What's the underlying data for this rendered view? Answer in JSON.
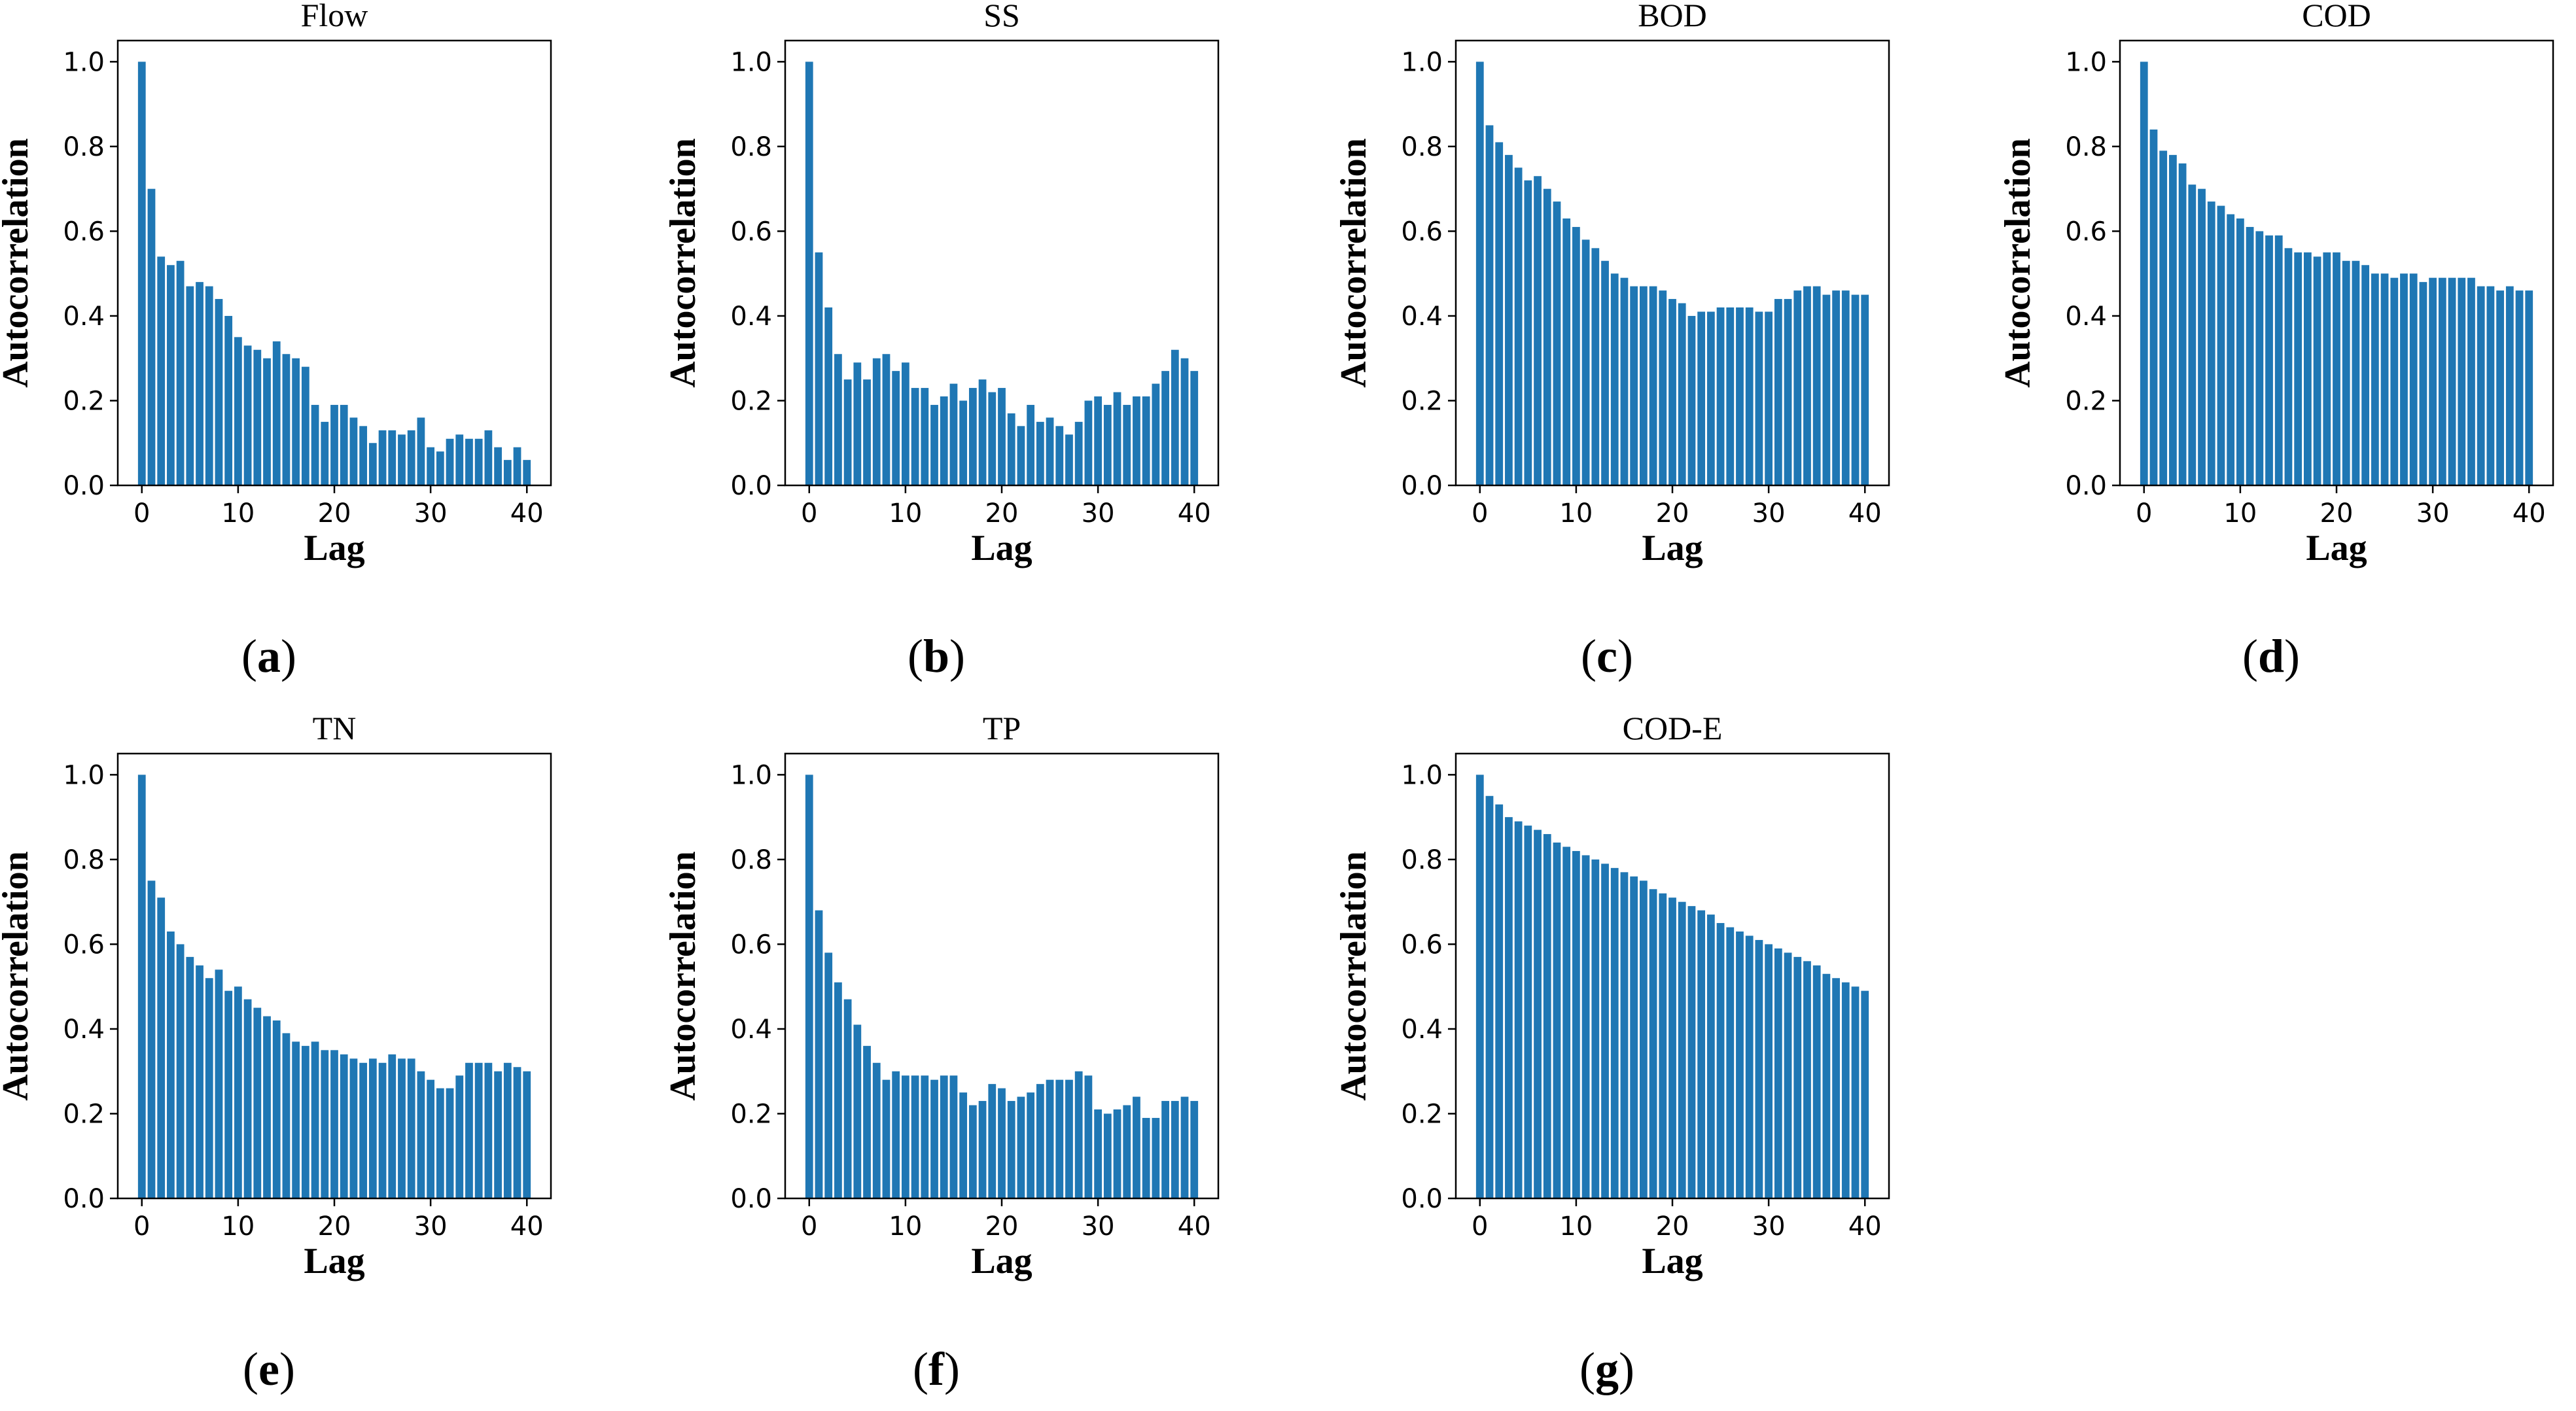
{
  "figure": {
    "panel_labels": [
      "a",
      "b",
      "c",
      "d",
      "e",
      "f",
      "g"
    ]
  },
  "colors": {
    "bar": "#1f77b4",
    "axis": "#000000"
  },
  "chart_data": [
    {
      "type": "bar",
      "title": "Flow",
      "xlabel": "Lag",
      "ylabel": "Autocorrelation",
      "xlim": [
        -2.5,
        42.5
      ],
      "ylim": [
        0,
        1.05
      ],
      "xticks": [
        0,
        10,
        20,
        30,
        40
      ],
      "yticks": [
        0.0,
        0.2,
        0.4,
        0.6,
        0.8,
        1.0
      ],
      "xtick_labels": [
        "0",
        "10",
        "20",
        "30",
        "40"
      ],
      "ytick_labels": [
        "0.0",
        "0.2",
        "0.4",
        "0.6",
        "0.8",
        "1.0"
      ],
      "x": [
        0,
        1,
        2,
        3,
        4,
        5,
        6,
        7,
        8,
        9,
        10,
        11,
        12,
        13,
        14,
        15,
        16,
        17,
        18,
        19,
        20,
        21,
        22,
        23,
        24,
        25,
        26,
        27,
        28,
        29,
        30,
        31,
        32,
        33,
        34,
        35,
        36,
        37,
        38,
        39,
        40
      ],
      "values": [
        1.0,
        0.7,
        0.54,
        0.52,
        0.53,
        0.47,
        0.48,
        0.47,
        0.44,
        0.4,
        0.35,
        0.33,
        0.32,
        0.3,
        0.34,
        0.31,
        0.3,
        0.28,
        0.19,
        0.15,
        0.19,
        0.19,
        0.16,
        0.14,
        0.1,
        0.13,
        0.13,
        0.12,
        0.13,
        0.16,
        0.09,
        0.08,
        0.11,
        0.12,
        0.11,
        0.11,
        0.13,
        0.09,
        0.06,
        0.09,
        0.06
      ]
    },
    {
      "type": "bar",
      "title": "SS",
      "xlabel": "Lag",
      "ylabel": "Autocorrelation",
      "xlim": [
        -2.5,
        42.5
      ],
      "ylim": [
        0,
        1.05
      ],
      "xticks": [
        0,
        10,
        20,
        30,
        40
      ],
      "yticks": [
        0.0,
        0.2,
        0.4,
        0.6,
        0.8,
        1.0
      ],
      "xtick_labels": [
        "0",
        "10",
        "20",
        "30",
        "40"
      ],
      "ytick_labels": [
        "0.0",
        "0.2",
        "0.4",
        "0.6",
        "0.8",
        "1.0"
      ],
      "x": [
        0,
        1,
        2,
        3,
        4,
        5,
        6,
        7,
        8,
        9,
        10,
        11,
        12,
        13,
        14,
        15,
        16,
        17,
        18,
        19,
        20,
        21,
        22,
        23,
        24,
        25,
        26,
        27,
        28,
        29,
        30,
        31,
        32,
        33,
        34,
        35,
        36,
        37,
        38,
        39,
        40
      ],
      "values": [
        1.0,
        0.55,
        0.42,
        0.31,
        0.25,
        0.29,
        0.25,
        0.3,
        0.31,
        0.27,
        0.29,
        0.23,
        0.23,
        0.19,
        0.21,
        0.24,
        0.2,
        0.23,
        0.25,
        0.22,
        0.23,
        0.17,
        0.14,
        0.19,
        0.15,
        0.16,
        0.14,
        0.12,
        0.15,
        0.2,
        0.21,
        0.19,
        0.22,
        0.19,
        0.21,
        0.21,
        0.24,
        0.27,
        0.32,
        0.3,
        0.27
      ]
    },
    {
      "type": "bar",
      "title": "BOD",
      "xlabel": "Lag",
      "ylabel": "Autocorrelation",
      "xlim": [
        -2.5,
        42.5
      ],
      "ylim": [
        0,
        1.05
      ],
      "xticks": [
        0,
        10,
        20,
        30,
        40
      ],
      "yticks": [
        0.0,
        0.2,
        0.4,
        0.6,
        0.8,
        1.0
      ],
      "xtick_labels": [
        "0",
        "10",
        "20",
        "30",
        "40"
      ],
      "ytick_labels": [
        "0.0",
        "0.2",
        "0.4",
        "0.6",
        "0.8",
        "1.0"
      ],
      "x": [
        0,
        1,
        2,
        3,
        4,
        5,
        6,
        7,
        8,
        9,
        10,
        11,
        12,
        13,
        14,
        15,
        16,
        17,
        18,
        19,
        20,
        21,
        22,
        23,
        24,
        25,
        26,
        27,
        28,
        29,
        30,
        31,
        32,
        33,
        34,
        35,
        36,
        37,
        38,
        39,
        40
      ],
      "values": [
        1.0,
        0.85,
        0.81,
        0.78,
        0.75,
        0.72,
        0.73,
        0.7,
        0.67,
        0.63,
        0.61,
        0.58,
        0.56,
        0.53,
        0.5,
        0.49,
        0.47,
        0.47,
        0.47,
        0.46,
        0.44,
        0.43,
        0.4,
        0.41,
        0.41,
        0.42,
        0.42,
        0.42,
        0.42,
        0.41,
        0.41,
        0.44,
        0.44,
        0.46,
        0.47,
        0.47,
        0.45,
        0.46,
        0.46,
        0.45,
        0.45
      ]
    },
    {
      "type": "bar",
      "title": "COD",
      "xlabel": "Lag",
      "ylabel": "Autocorrelation",
      "xlim": [
        -2.5,
        42.5
      ],
      "ylim": [
        0,
        1.05
      ],
      "xticks": [
        0,
        10,
        20,
        30,
        40
      ],
      "yticks": [
        0.0,
        0.2,
        0.4,
        0.6,
        0.8,
        1.0
      ],
      "xtick_labels": [
        "0",
        "10",
        "20",
        "30",
        "40"
      ],
      "ytick_labels": [
        "0.0",
        "0.2",
        "0.4",
        "0.6",
        "0.8",
        "1.0"
      ],
      "x": [
        0,
        1,
        2,
        3,
        4,
        5,
        6,
        7,
        8,
        9,
        10,
        11,
        12,
        13,
        14,
        15,
        16,
        17,
        18,
        19,
        20,
        21,
        22,
        23,
        24,
        25,
        26,
        27,
        28,
        29,
        30,
        31,
        32,
        33,
        34,
        35,
        36,
        37,
        38,
        39,
        40
      ],
      "values": [
        1.0,
        0.84,
        0.79,
        0.78,
        0.76,
        0.71,
        0.7,
        0.67,
        0.66,
        0.64,
        0.63,
        0.61,
        0.6,
        0.59,
        0.59,
        0.56,
        0.55,
        0.55,
        0.54,
        0.55,
        0.55,
        0.53,
        0.53,
        0.52,
        0.5,
        0.5,
        0.49,
        0.5,
        0.5,
        0.48,
        0.49,
        0.49,
        0.49,
        0.49,
        0.49,
        0.47,
        0.47,
        0.46,
        0.47,
        0.46,
        0.46
      ]
    },
    {
      "type": "bar",
      "title": "TN",
      "xlabel": "Lag",
      "ylabel": "Autocorrelation",
      "xlim": [
        -2.5,
        42.5
      ],
      "ylim": [
        0,
        1.05
      ],
      "xticks": [
        0,
        10,
        20,
        30,
        40
      ],
      "yticks": [
        0.0,
        0.2,
        0.4,
        0.6,
        0.8,
        1.0
      ],
      "xtick_labels": [
        "0",
        "10",
        "20",
        "30",
        "40"
      ],
      "ytick_labels": [
        "0.0",
        "0.2",
        "0.4",
        "0.6",
        "0.8",
        "1.0"
      ],
      "x": [
        0,
        1,
        2,
        3,
        4,
        5,
        6,
        7,
        8,
        9,
        10,
        11,
        12,
        13,
        14,
        15,
        16,
        17,
        18,
        19,
        20,
        21,
        22,
        23,
        24,
        25,
        26,
        27,
        28,
        29,
        30,
        31,
        32,
        33,
        34,
        35,
        36,
        37,
        38,
        39,
        40
      ],
      "values": [
        1.0,
        0.75,
        0.71,
        0.63,
        0.6,
        0.57,
        0.55,
        0.52,
        0.54,
        0.49,
        0.5,
        0.47,
        0.45,
        0.43,
        0.42,
        0.39,
        0.37,
        0.36,
        0.37,
        0.35,
        0.35,
        0.34,
        0.33,
        0.32,
        0.33,
        0.32,
        0.34,
        0.33,
        0.33,
        0.3,
        0.28,
        0.26,
        0.26,
        0.29,
        0.32,
        0.32,
        0.32,
        0.3,
        0.32,
        0.31,
        0.3
      ]
    },
    {
      "type": "bar",
      "title": "TP",
      "xlabel": "Lag",
      "ylabel": "Autocorrelation",
      "xlim": [
        -2.5,
        42.5
      ],
      "ylim": [
        0,
        1.05
      ],
      "xticks": [
        0,
        10,
        20,
        30,
        40
      ],
      "yticks": [
        0.0,
        0.2,
        0.4,
        0.6,
        0.8,
        1.0
      ],
      "xtick_labels": [
        "0",
        "10",
        "20",
        "30",
        "40"
      ],
      "ytick_labels": [
        "0.0",
        "0.2",
        "0.4",
        "0.6",
        "0.8",
        "1.0"
      ],
      "x": [
        0,
        1,
        2,
        3,
        4,
        5,
        6,
        7,
        8,
        9,
        10,
        11,
        12,
        13,
        14,
        15,
        16,
        17,
        18,
        19,
        20,
        21,
        22,
        23,
        24,
        25,
        26,
        27,
        28,
        29,
        30,
        31,
        32,
        33,
        34,
        35,
        36,
        37,
        38,
        39,
        40
      ],
      "values": [
        1.0,
        0.68,
        0.58,
        0.51,
        0.47,
        0.41,
        0.36,
        0.32,
        0.28,
        0.3,
        0.29,
        0.29,
        0.29,
        0.28,
        0.29,
        0.29,
        0.25,
        0.22,
        0.23,
        0.27,
        0.26,
        0.23,
        0.24,
        0.25,
        0.27,
        0.28,
        0.28,
        0.28,
        0.3,
        0.29,
        0.21,
        0.2,
        0.21,
        0.22,
        0.24,
        0.19,
        0.19,
        0.23,
        0.23,
        0.24,
        0.23
      ]
    },
    {
      "type": "bar",
      "title": "COD-E",
      "xlabel": "Lag",
      "ylabel": "Autocorrelation",
      "xlim": [
        -2.5,
        42.5
      ],
      "ylim": [
        0,
        1.05
      ],
      "xticks": [
        0,
        10,
        20,
        30,
        40
      ],
      "yticks": [
        0.0,
        0.2,
        0.4,
        0.6,
        0.8,
        1.0
      ],
      "xtick_labels": [
        "0",
        "10",
        "20",
        "30",
        "40"
      ],
      "ytick_labels": [
        "0.0",
        "0.2",
        "0.4",
        "0.6",
        "0.8",
        "1.0"
      ],
      "x": [
        0,
        1,
        2,
        3,
        4,
        5,
        6,
        7,
        8,
        9,
        10,
        11,
        12,
        13,
        14,
        15,
        16,
        17,
        18,
        19,
        20,
        21,
        22,
        23,
        24,
        25,
        26,
        27,
        28,
        29,
        30,
        31,
        32,
        33,
        34,
        35,
        36,
        37,
        38,
        39,
        40
      ],
      "values": [
        1.0,
        0.95,
        0.93,
        0.9,
        0.89,
        0.88,
        0.87,
        0.86,
        0.84,
        0.83,
        0.82,
        0.81,
        0.8,
        0.79,
        0.78,
        0.77,
        0.76,
        0.75,
        0.73,
        0.72,
        0.71,
        0.7,
        0.69,
        0.68,
        0.67,
        0.65,
        0.64,
        0.63,
        0.62,
        0.61,
        0.6,
        0.59,
        0.58,
        0.57,
        0.56,
        0.55,
        0.53,
        0.52,
        0.51,
        0.5,
        0.49
      ]
    }
  ]
}
